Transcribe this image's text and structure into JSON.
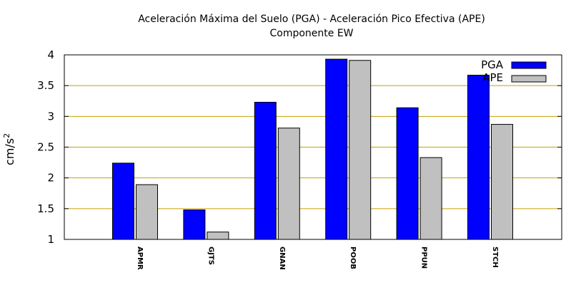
{
  "chart_data": {
    "type": "bar",
    "title": "Aceleración Máxima del Suelo (PGA) -  Aceleración Pico Efectiva (APE)",
    "subtitle": "Componente EW",
    "ylabel": "cm/s",
    "ylabel_sup": "2",
    "xlabel": "",
    "ylim": [
      1,
      4
    ],
    "yticks": [
      "1",
      "1.5",
      "2",
      "2.5",
      "3",
      "3.5",
      "4"
    ],
    "grid": "horizontal",
    "legend": "top-right",
    "categories": [
      "APMR",
      "GJTS",
      "GNAN",
      "POOB",
      "PPUN",
      "STCH"
    ],
    "series": [
      {
        "name": "PGA",
        "color": "#0000ff",
        "values": [
          2.24,
          1.48,
          3.23,
          3.93,
          3.14,
          3.67
        ]
      },
      {
        "name": "APE",
        "color": "#c0c0c0",
        "values": [
          1.89,
          1.12,
          2.81,
          3.91,
          2.33,
          2.87
        ]
      }
    ]
  }
}
